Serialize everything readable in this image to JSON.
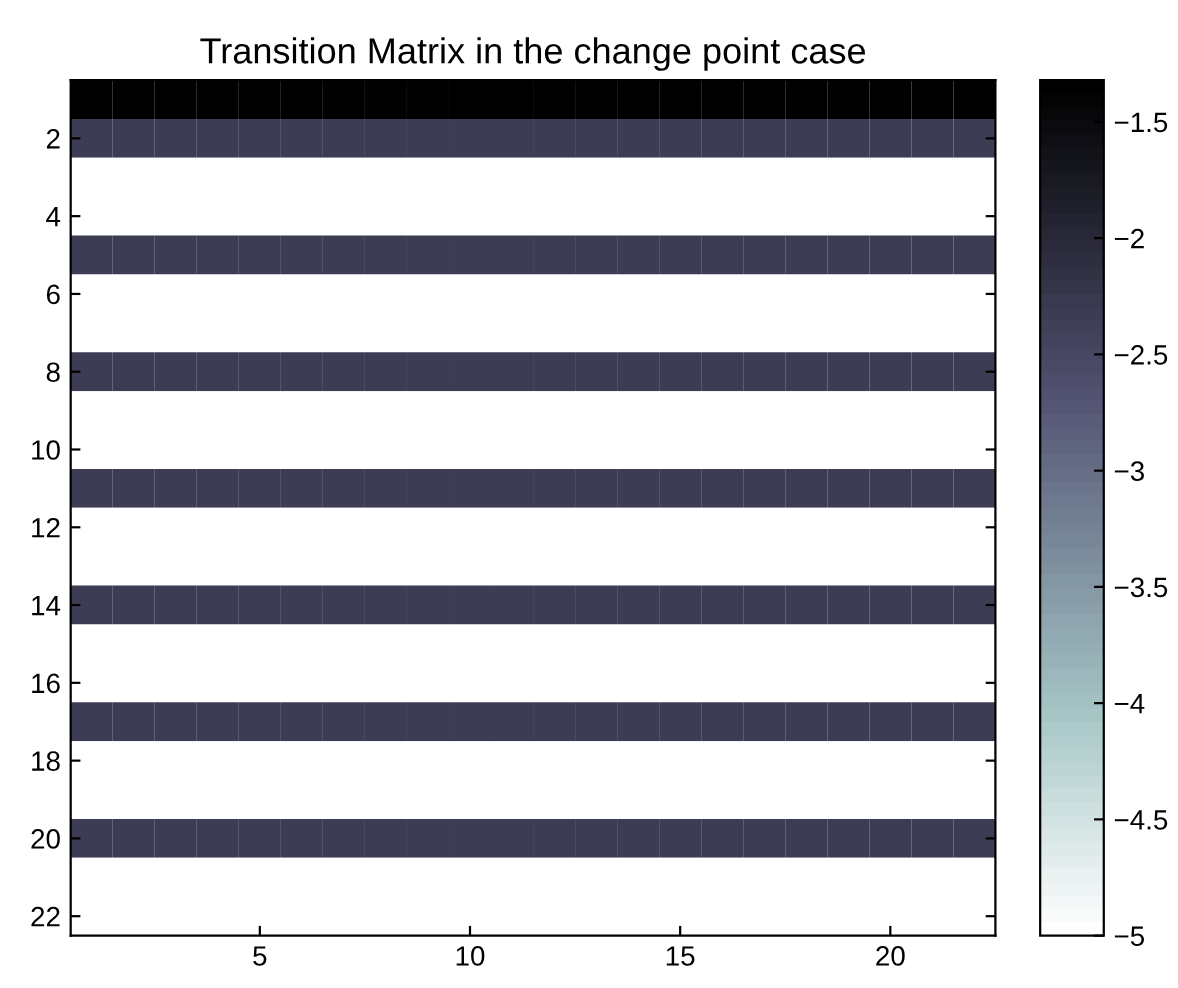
{
  "chart_data": {
    "type": "heatmap",
    "title": "Transition Matrix in the change point case",
    "categories": [
      null,
      null,
      null,
      null,
      "5",
      null,
      null,
      null,
      null,
      "10",
      null,
      null,
      null,
      null,
      "15",
      null,
      null,
      null,
      null,
      "20",
      null,
      null
    ],
    "y_categories": [
      null,
      "2",
      null,
      "4",
      null,
      "6",
      null,
      "8",
      null,
      "10",
      null,
      "12",
      null,
      "14",
      null,
      "16",
      null,
      "18",
      null,
      "20",
      null,
      "22"
    ],
    "cells": [
      [
        -1.32,
        -1.32,
        -1.32,
        -1.32,
        -1.32,
        -1.32,
        -1.32,
        -1.32,
        -1.32,
        -1.32,
        -1.32,
        -1.32,
        -1.32,
        -1.32,
        -1.32,
        -1.32,
        -1.32,
        -1.32,
        -1.32,
        -1.32,
        -1.32,
        -1.32
      ],
      [
        -2.3,
        -2.3,
        -2.3,
        -2.3,
        -2.3,
        -2.3,
        -2.3,
        -2.3,
        -2.3,
        -2.3,
        -2.3,
        -2.3,
        -2.3,
        -2.3,
        -2.3,
        -2.3,
        -2.3,
        -2.3,
        -2.3,
        -2.3,
        -2.3,
        -2.3
      ],
      [
        -5,
        -5,
        -5,
        -5,
        -5,
        -5,
        -5,
        -5,
        -5,
        -5,
        -5,
        -5,
        -5,
        -5,
        -5,
        -5,
        -5,
        -5,
        -5,
        -5,
        -5,
        -5
      ],
      [
        -5,
        -5,
        -5,
        -5,
        -5,
        -5,
        -5,
        -5,
        -5,
        -5,
        -5,
        -5,
        -5,
        -5,
        -5,
        -5,
        -5,
        -5,
        -5,
        -5,
        -5,
        -5
      ],
      [
        -2.3,
        -2.3,
        -2.3,
        -2.3,
        -2.3,
        -2.3,
        -2.3,
        -2.3,
        -2.3,
        -2.3,
        -2.3,
        -2.3,
        -2.3,
        -2.3,
        -2.3,
        -2.3,
        -2.3,
        -2.3,
        -2.3,
        -2.3,
        -2.3,
        -2.3
      ],
      [
        -5,
        -5,
        -5,
        -5,
        -5,
        -5,
        -5,
        -5,
        -5,
        -5,
        -5,
        -5,
        -5,
        -5,
        -5,
        -5,
        -5,
        -5,
        -5,
        -5,
        -5,
        -5
      ],
      [
        -5,
        -5,
        -5,
        -5,
        -5,
        -5,
        -5,
        -5,
        -5,
        -5,
        -5,
        -5,
        -5,
        -5,
        -5,
        -5,
        -5,
        -5,
        -5,
        -5,
        -5,
        -5
      ],
      [
        -2.3,
        -2.3,
        -2.3,
        -2.3,
        -2.3,
        -2.3,
        -2.3,
        -2.3,
        -2.3,
        -2.3,
        -2.3,
        -2.3,
        -2.3,
        -2.3,
        -2.3,
        -2.3,
        -2.3,
        -2.3,
        -2.3,
        -2.3,
        -2.3,
        -2.3
      ],
      [
        -5,
        -5,
        -5,
        -5,
        -5,
        -5,
        -5,
        -5,
        -5,
        -5,
        -5,
        -5,
        -5,
        -5,
        -5,
        -5,
        -5,
        -5,
        -5,
        -5,
        -5,
        -5
      ],
      [
        -5,
        -5,
        -5,
        -5,
        -5,
        -5,
        -5,
        -5,
        -5,
        -5,
        -5,
        -5,
        -5,
        -5,
        -5,
        -5,
        -5,
        -5,
        -5,
        -5,
        -5,
        -5
      ],
      [
        -2.3,
        -2.3,
        -2.3,
        -2.3,
        -2.3,
        -2.3,
        -2.3,
        -2.3,
        -2.3,
        -2.3,
        -2.3,
        -2.3,
        -2.3,
        -2.3,
        -2.3,
        -2.3,
        -2.3,
        -2.3,
        -2.3,
        -2.3,
        -2.3,
        -2.3
      ],
      [
        -5,
        -5,
        -5,
        -5,
        -5,
        -5,
        -5,
        -5,
        -5,
        -5,
        -5,
        -5,
        -5,
        -5,
        -5,
        -5,
        -5,
        -5,
        -5,
        -5,
        -5,
        -5
      ],
      [
        -5,
        -5,
        -5,
        -5,
        -5,
        -5,
        -5,
        -5,
        -5,
        -5,
        -5,
        -5,
        -5,
        -5,
        -5,
        -5,
        -5,
        -5,
        -5,
        -5,
        -5,
        -5
      ],
      [
        -2.3,
        -2.3,
        -2.3,
        -2.3,
        -2.3,
        -2.3,
        -2.3,
        -2.3,
        -2.3,
        -2.3,
        -2.3,
        -2.3,
        -2.3,
        -2.3,
        -2.3,
        -2.3,
        -2.3,
        -2.3,
        -2.3,
        -2.3,
        -2.3,
        -2.3
      ],
      [
        -5,
        -5,
        -5,
        -5,
        -5,
        -5,
        -5,
        -5,
        -5,
        -5,
        -5,
        -5,
        -5,
        -5,
        -5,
        -5,
        -5,
        -5,
        -5,
        -5,
        -5,
        -5
      ],
      [
        -5,
        -5,
        -5,
        -5,
        -5,
        -5,
        -5,
        -5,
        -5,
        -5,
        -5,
        -5,
        -5,
        -5,
        -5,
        -5,
        -5,
        -5,
        -5,
        -5,
        -5,
        -5
      ],
      [
        -2.3,
        -2.3,
        -2.3,
        -2.3,
        -2.3,
        -2.3,
        -2.3,
        -2.3,
        -2.3,
        -2.3,
        -2.3,
        -2.3,
        -2.3,
        -2.3,
        -2.3,
        -2.3,
        -2.3,
        -2.3,
        -2.3,
        -2.3,
        -2.3,
        -2.3
      ],
      [
        -5,
        -5,
        -5,
        -5,
        -5,
        -5,
        -5,
        -5,
        -5,
        -5,
        -5,
        -5,
        -5,
        -5,
        -5,
        -5,
        -5,
        -5,
        -5,
        -5,
        -5,
        -5
      ],
      [
        -5,
        -5,
        -5,
        -5,
        -5,
        -5,
        -5,
        -5,
        -5,
        -5,
        -5,
        -5,
        -5,
        -5,
        -5,
        -5,
        -5,
        -5,
        -5,
        -5,
        -5,
        -5
      ],
      [
        -2.3,
        -2.3,
        -2.3,
        -2.3,
        -2.3,
        -2.3,
        -2.3,
        -2.3,
        -2.3,
        -2.3,
        -2.3,
        -2.3,
        -2.3,
        -2.3,
        -2.3,
        -2.3,
        -2.3,
        -2.3,
        -2.3,
        -2.3,
        -2.3,
        -2.3
      ],
      [
        -5,
        -5,
        -5,
        -5,
        -5,
        -5,
        -5,
        -5,
        -5,
        -5,
        -5,
        -5,
        -5,
        -5,
        -5,
        -5,
        -5,
        -5,
        -5,
        -5,
        -5,
        -5
      ],
      [
        -5,
        -5,
        -5,
        -5,
        -5,
        -5,
        -5,
        -5,
        -5,
        -5,
        -5,
        -5,
        -5,
        -5,
        -5,
        -5,
        -5,
        -5,
        -5,
        -5,
        -5,
        -5
      ]
    ],
    "clim": [
      -5,
      -1.32
    ],
    "cticks": [
      -5,
      -4.5,
      -4,
      -3.5,
      -3,
      -2.5,
      -2,
      -1.5
    ]
  }
}
